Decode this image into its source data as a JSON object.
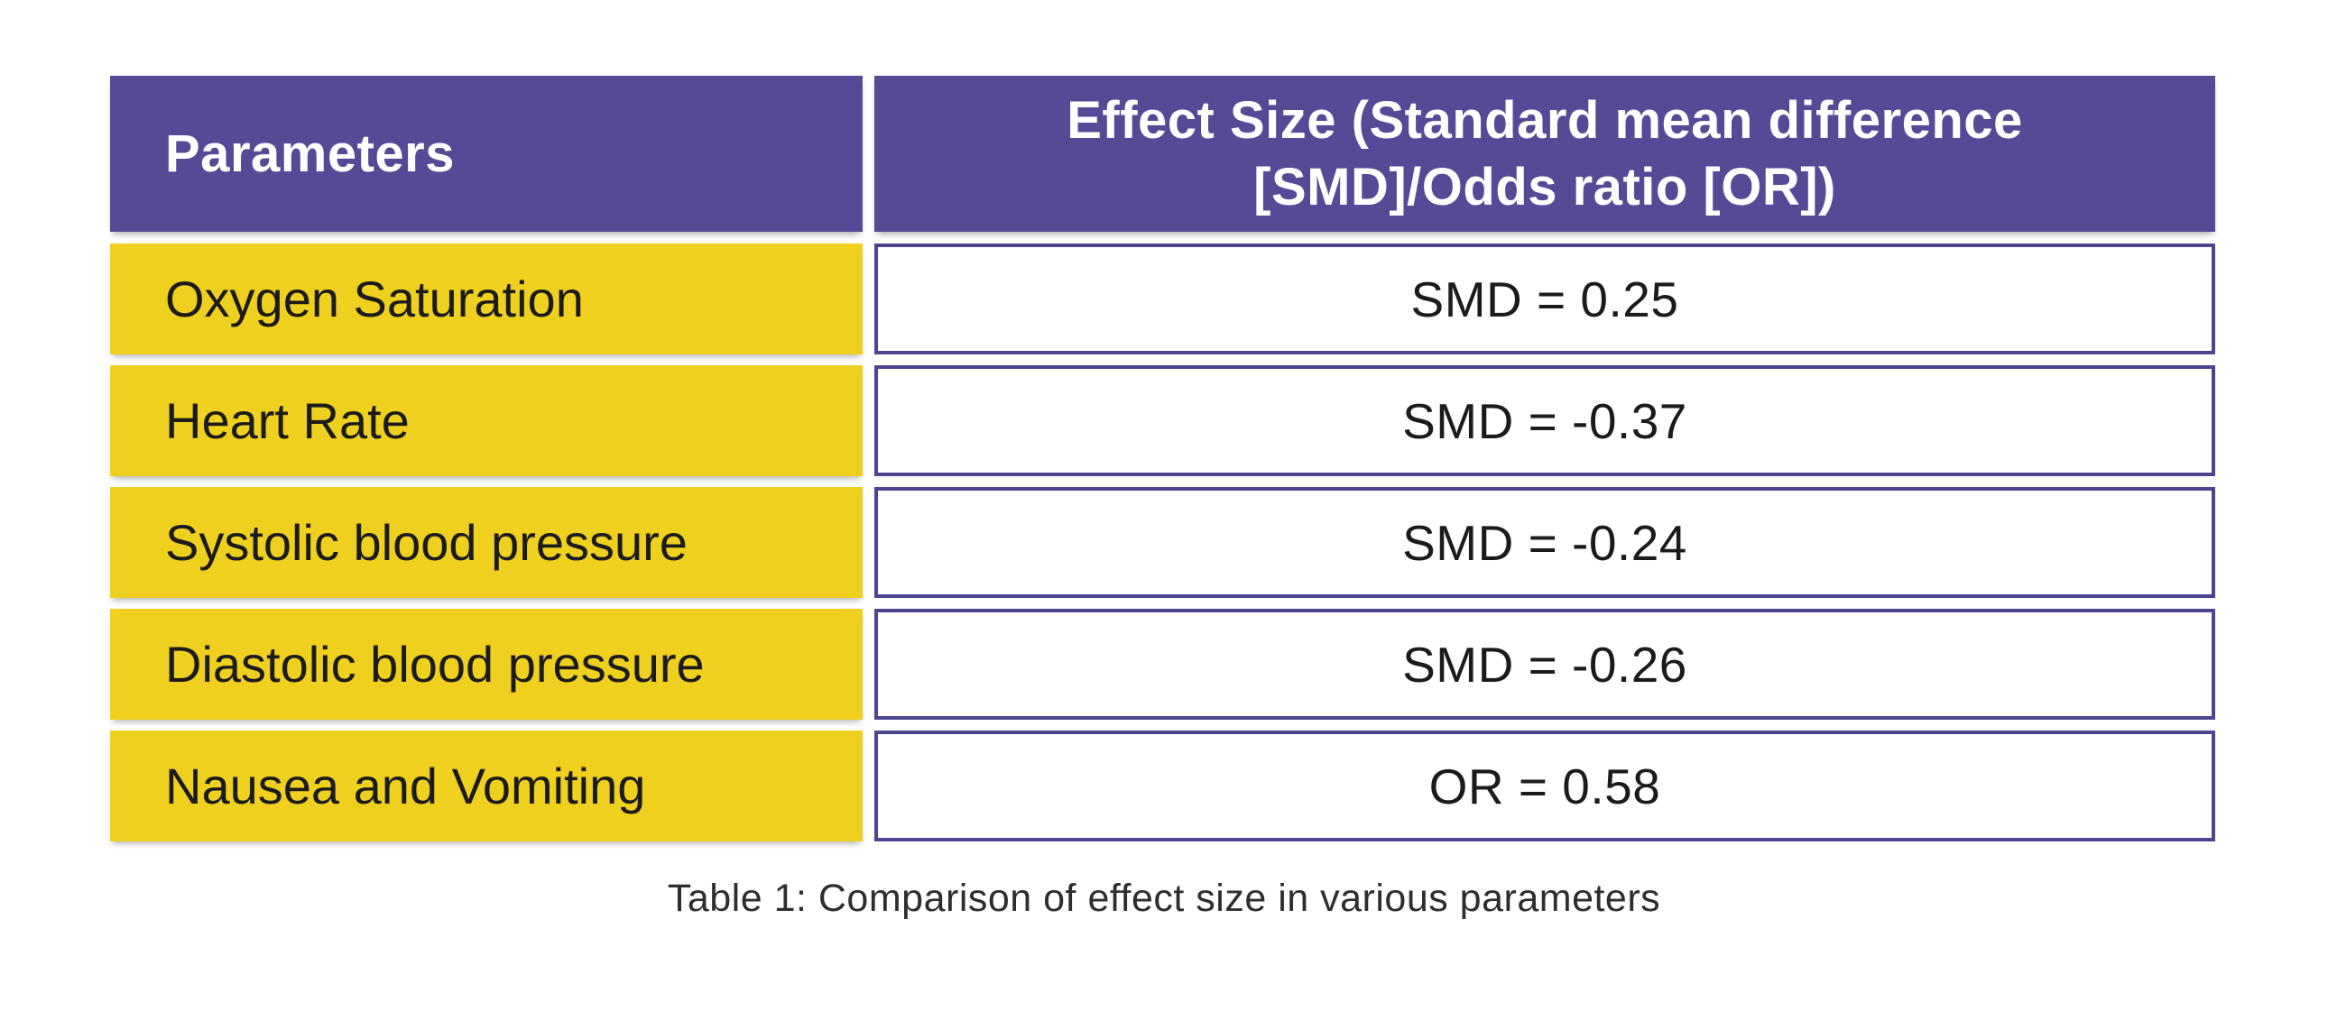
{
  "chart_data": {
    "type": "table",
    "title": "Table 1: Comparison of effect size in various parameters",
    "columns": [
      "Parameters",
      "Effect Size (Standard mean difference [SMD]/Odds ratio [OR])"
    ],
    "rows": [
      [
        "Oxygen Saturation",
        "SMD = 0.25"
      ],
      [
        "Heart Rate",
        "SMD = -0.37"
      ],
      [
        "Systolic blood pressure",
        "SMD = -0.24"
      ],
      [
        "Diastolic blood pressure",
        "SMD = -0.26"
      ],
      [
        "Nausea and Vomiting",
        "OR = 0.58"
      ]
    ],
    "values": {
      "Oxygen Saturation": 0.25,
      "Heart Rate": -0.37,
      "Systolic blood pressure": -0.24,
      "Diastolic blood pressure": -0.26,
      "Nausea and Vomiting": 0.58
    },
    "measure_types": {
      "Oxygen Saturation": "SMD",
      "Heart Rate": "SMD",
      "Systolic blood pressure": "SMD",
      "Diastolic blood pressure": "SMD",
      "Nausea and Vomiting": "OR"
    }
  },
  "table": {
    "header": {
      "parameters": "Parameters",
      "effect_size_line1": "Effect Size (Standard mean difference",
      "effect_size_line2": "[SMD]/Odds ratio [OR])"
    },
    "rows": [
      {
        "parameter": "Oxygen Saturation",
        "effect": "SMD = 0.25"
      },
      {
        "parameter": "Heart Rate",
        "effect": "SMD = -0.37"
      },
      {
        "parameter": "Systolic blood pressure",
        "effect": "SMD = -0.24"
      },
      {
        "parameter": "Diastolic blood pressure",
        "effect": "SMD = -0.26"
      },
      {
        "parameter": "Nausea and Vomiting",
        "effect": "OR = 0.58"
      }
    ],
    "caption": "Table 1: Comparison of effect size in various parameters"
  },
  "colors": {
    "header_purple": "#564A97",
    "border_purple": "#4E4590",
    "row_yellow": "#F0D01E",
    "header_text": "#FFFFFF",
    "body_text": "#1B1B1B",
    "background": "#FFFFFF"
  }
}
